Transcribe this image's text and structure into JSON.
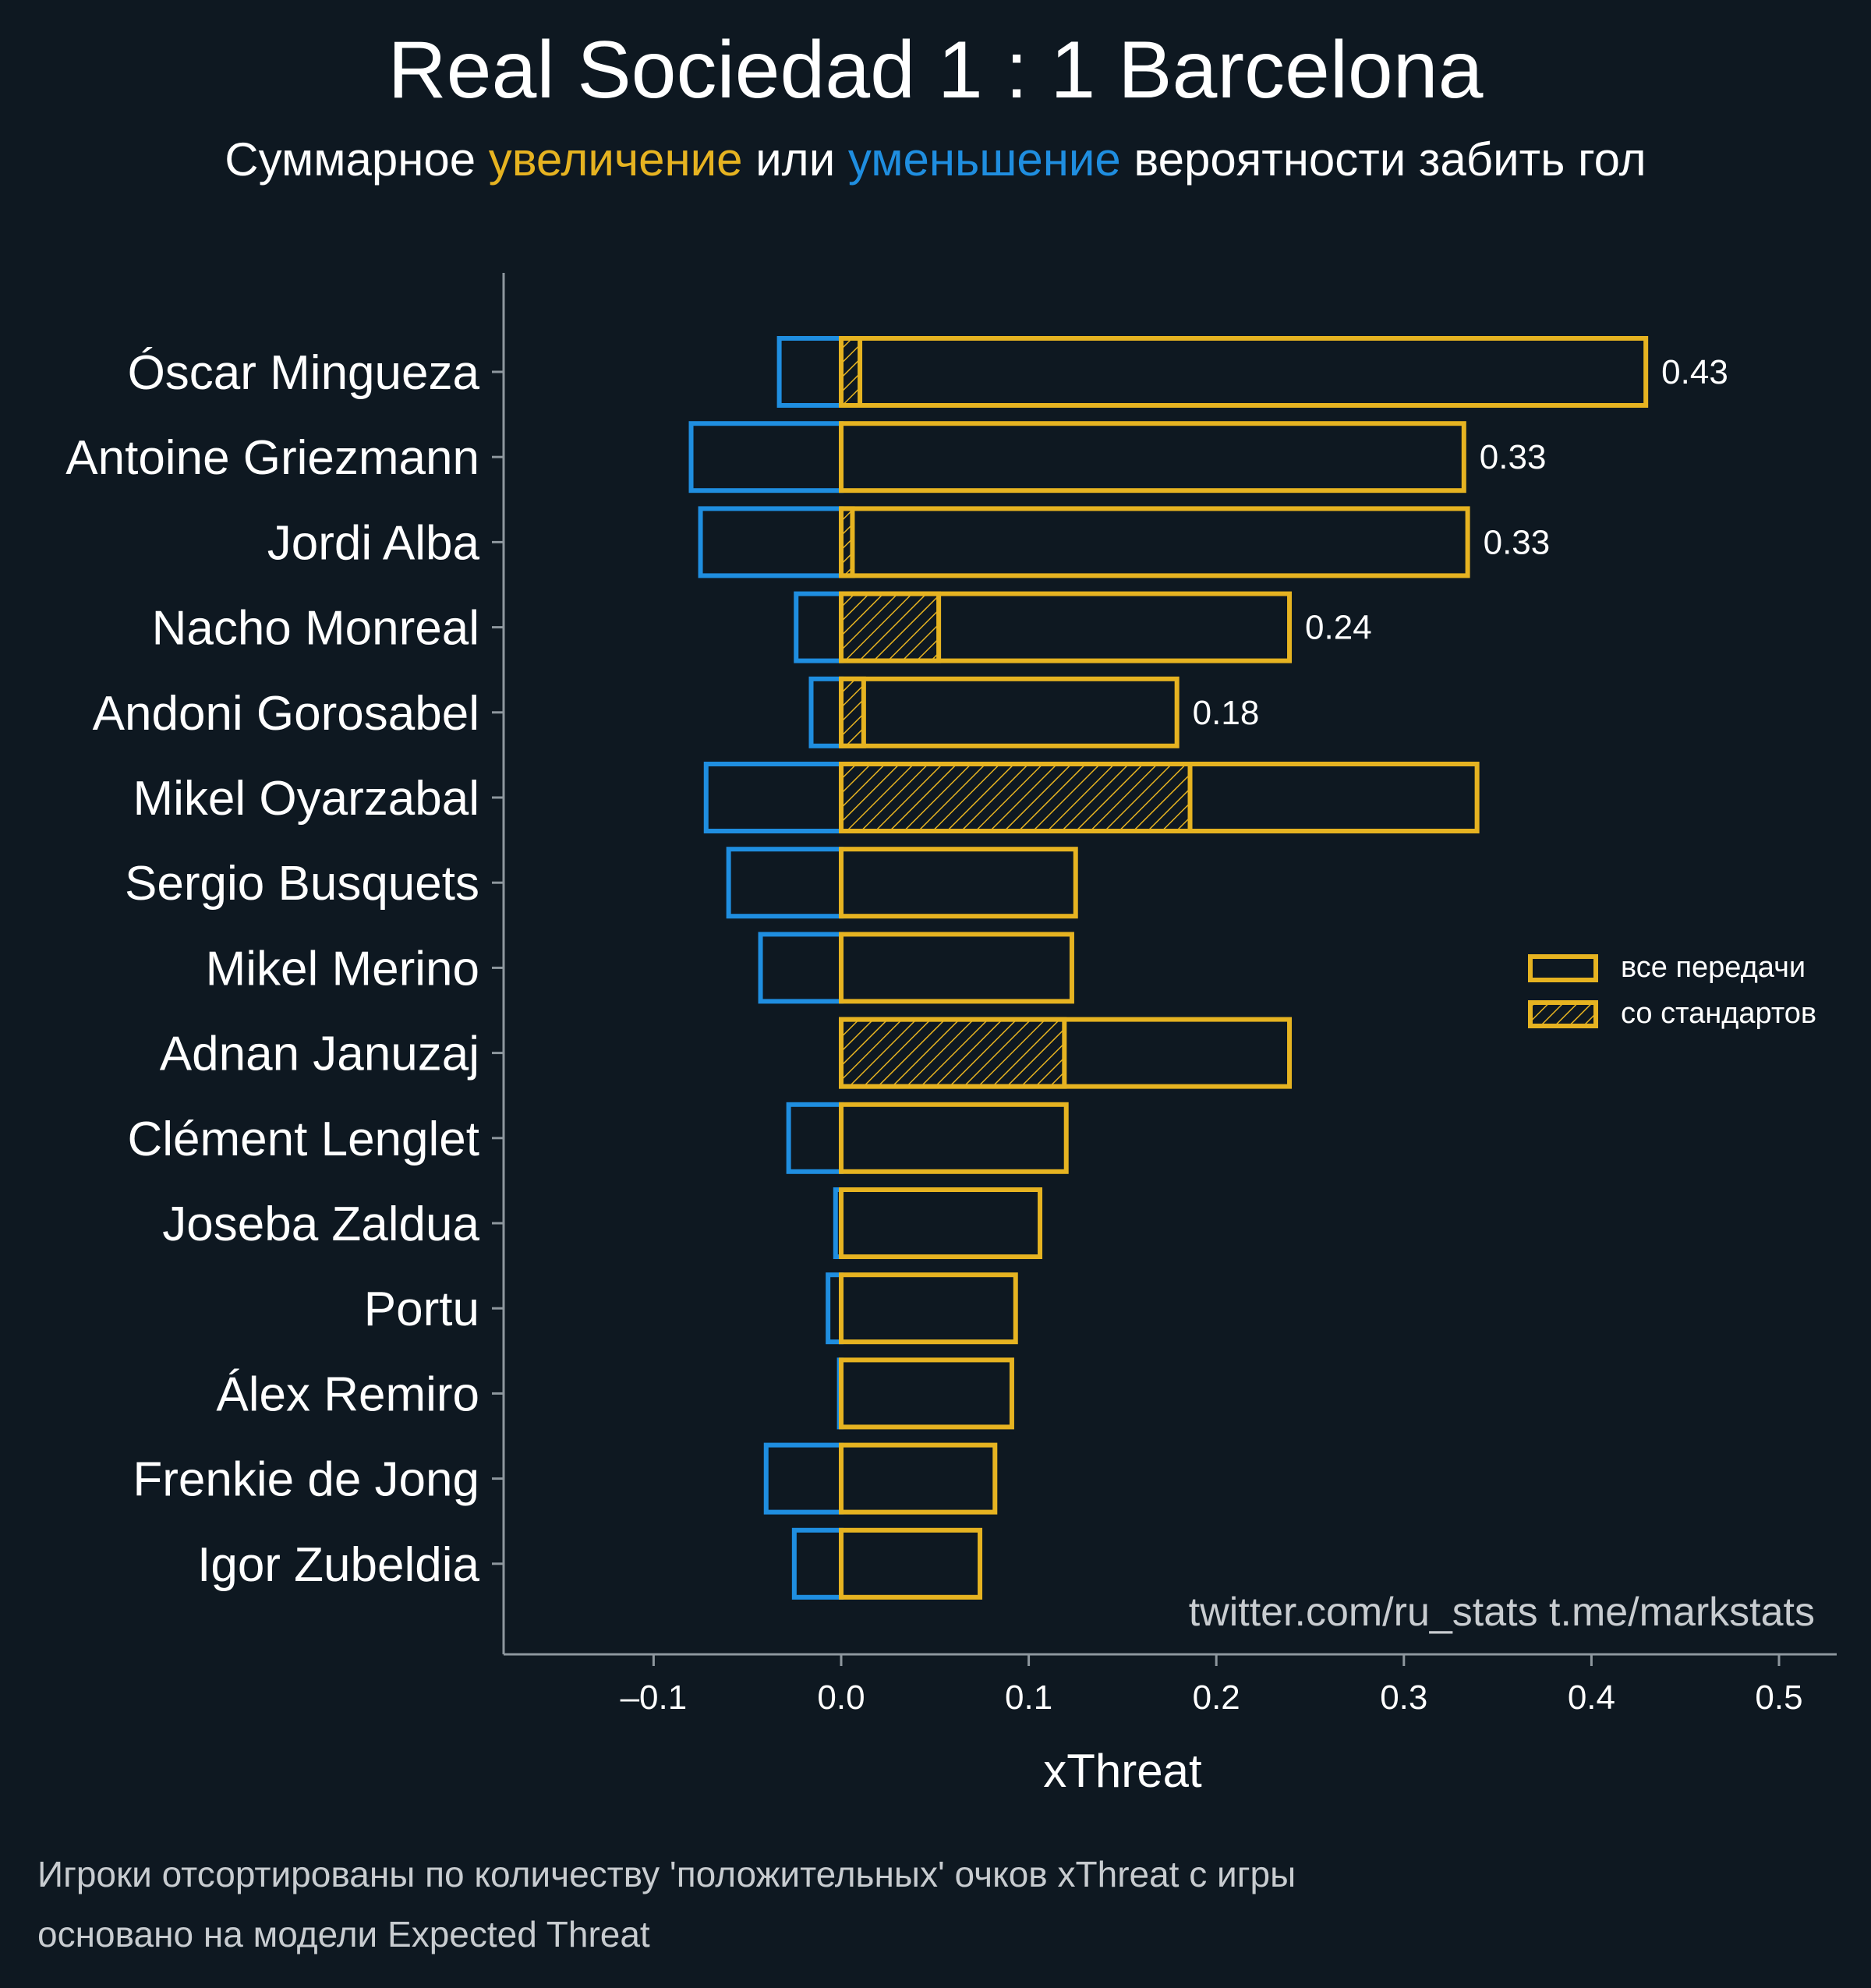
{
  "chart_data": {
    "type": "bar",
    "orientation": "horizontal",
    "title": "Real Sociedad 1 : 1 Barcelona",
    "subtitle": {
      "prefix": "Суммарное ",
      "increase": "увеличение",
      "middle": " или ",
      "decrease": "уменьшение",
      "suffix": " вероятности забить гол"
    },
    "xlabel": "xThreat",
    "ylabel": "",
    "xlim": [
      -0.18,
      0.53
    ],
    "xticks": [
      -0.1,
      0.0,
      0.1,
      0.2,
      0.3,
      0.4,
      0.5
    ],
    "xtick_labels": [
      "–0.1",
      "0.0",
      "0.1",
      "0.2",
      "0.3",
      "0.4",
      "0.5"
    ],
    "categories": [
      "Óscar Mingueza",
      "Antoine Griezmann",
      "Jordi Alba",
      "Nacho Monreal",
      "Andoni Gorosabel",
      "Mikel Oyarzabal",
      "Sergio Busquets",
      "Mikel Merino",
      "Adnan Januzaj",
      "Clément Lenglet",
      "Joseba Zaldua",
      "Portu",
      "Álex Remiro",
      "Frenkie de Jong",
      "Igor Zubeldia"
    ],
    "series": [
      {
        "name": "все передачи",
        "key": "positive",
        "color": "#e6b321",
        "values": [
          0.429,
          0.332,
          0.334,
          0.239,
          0.179,
          0.339,
          0.125,
          0.123,
          0.239,
          0.12,
          0.106,
          0.093,
          0.091,
          0.082,
          0.074
        ]
      },
      {
        "name": "со стандартов",
        "key": "set_pieces",
        "color": "#e6b321",
        "hatched": true,
        "values": [
          0.01,
          0.0,
          0.006,
          0.052,
          0.012,
          0.186,
          0.0,
          0.0,
          0.119,
          0.0,
          0.0,
          0.0,
          0.0,
          0.0,
          0.0
        ]
      },
      {
        "name": "negative",
        "key": "negative",
        "color": "#1f8ee0",
        "values": [
          -0.033,
          -0.08,
          -0.075,
          -0.024,
          -0.016,
          -0.072,
          -0.06,
          -0.043,
          0.0,
          -0.028,
          -0.003,
          -0.007,
          -0.001,
          -0.04,
          -0.025
        ]
      }
    ],
    "value_labels": [
      {
        "index": 0,
        "text": "0.43"
      },
      {
        "index": 1,
        "text": "0.33"
      },
      {
        "index": 2,
        "text": "0.33"
      },
      {
        "index": 3,
        "text": "0.24"
      },
      {
        "index": 4,
        "text": "0.18"
      }
    ],
    "legend": {
      "position": "right",
      "entries": [
        "все передачи",
        "со стандартов"
      ]
    },
    "watermark": "twitter.com/ru_stats  t.me/markstats",
    "footnotes": [
      "Игроки отсортированы по количеству 'положительных' очков xThreat с игры",
      "основано на модели Expected Threat"
    ],
    "colors": {
      "background": "#0e1821",
      "positive": "#e6b321",
      "negative": "#1f8ee0",
      "axis": "#8e979e",
      "text": "#ffffff",
      "muted_text": "#c8ccd0"
    }
  }
}
